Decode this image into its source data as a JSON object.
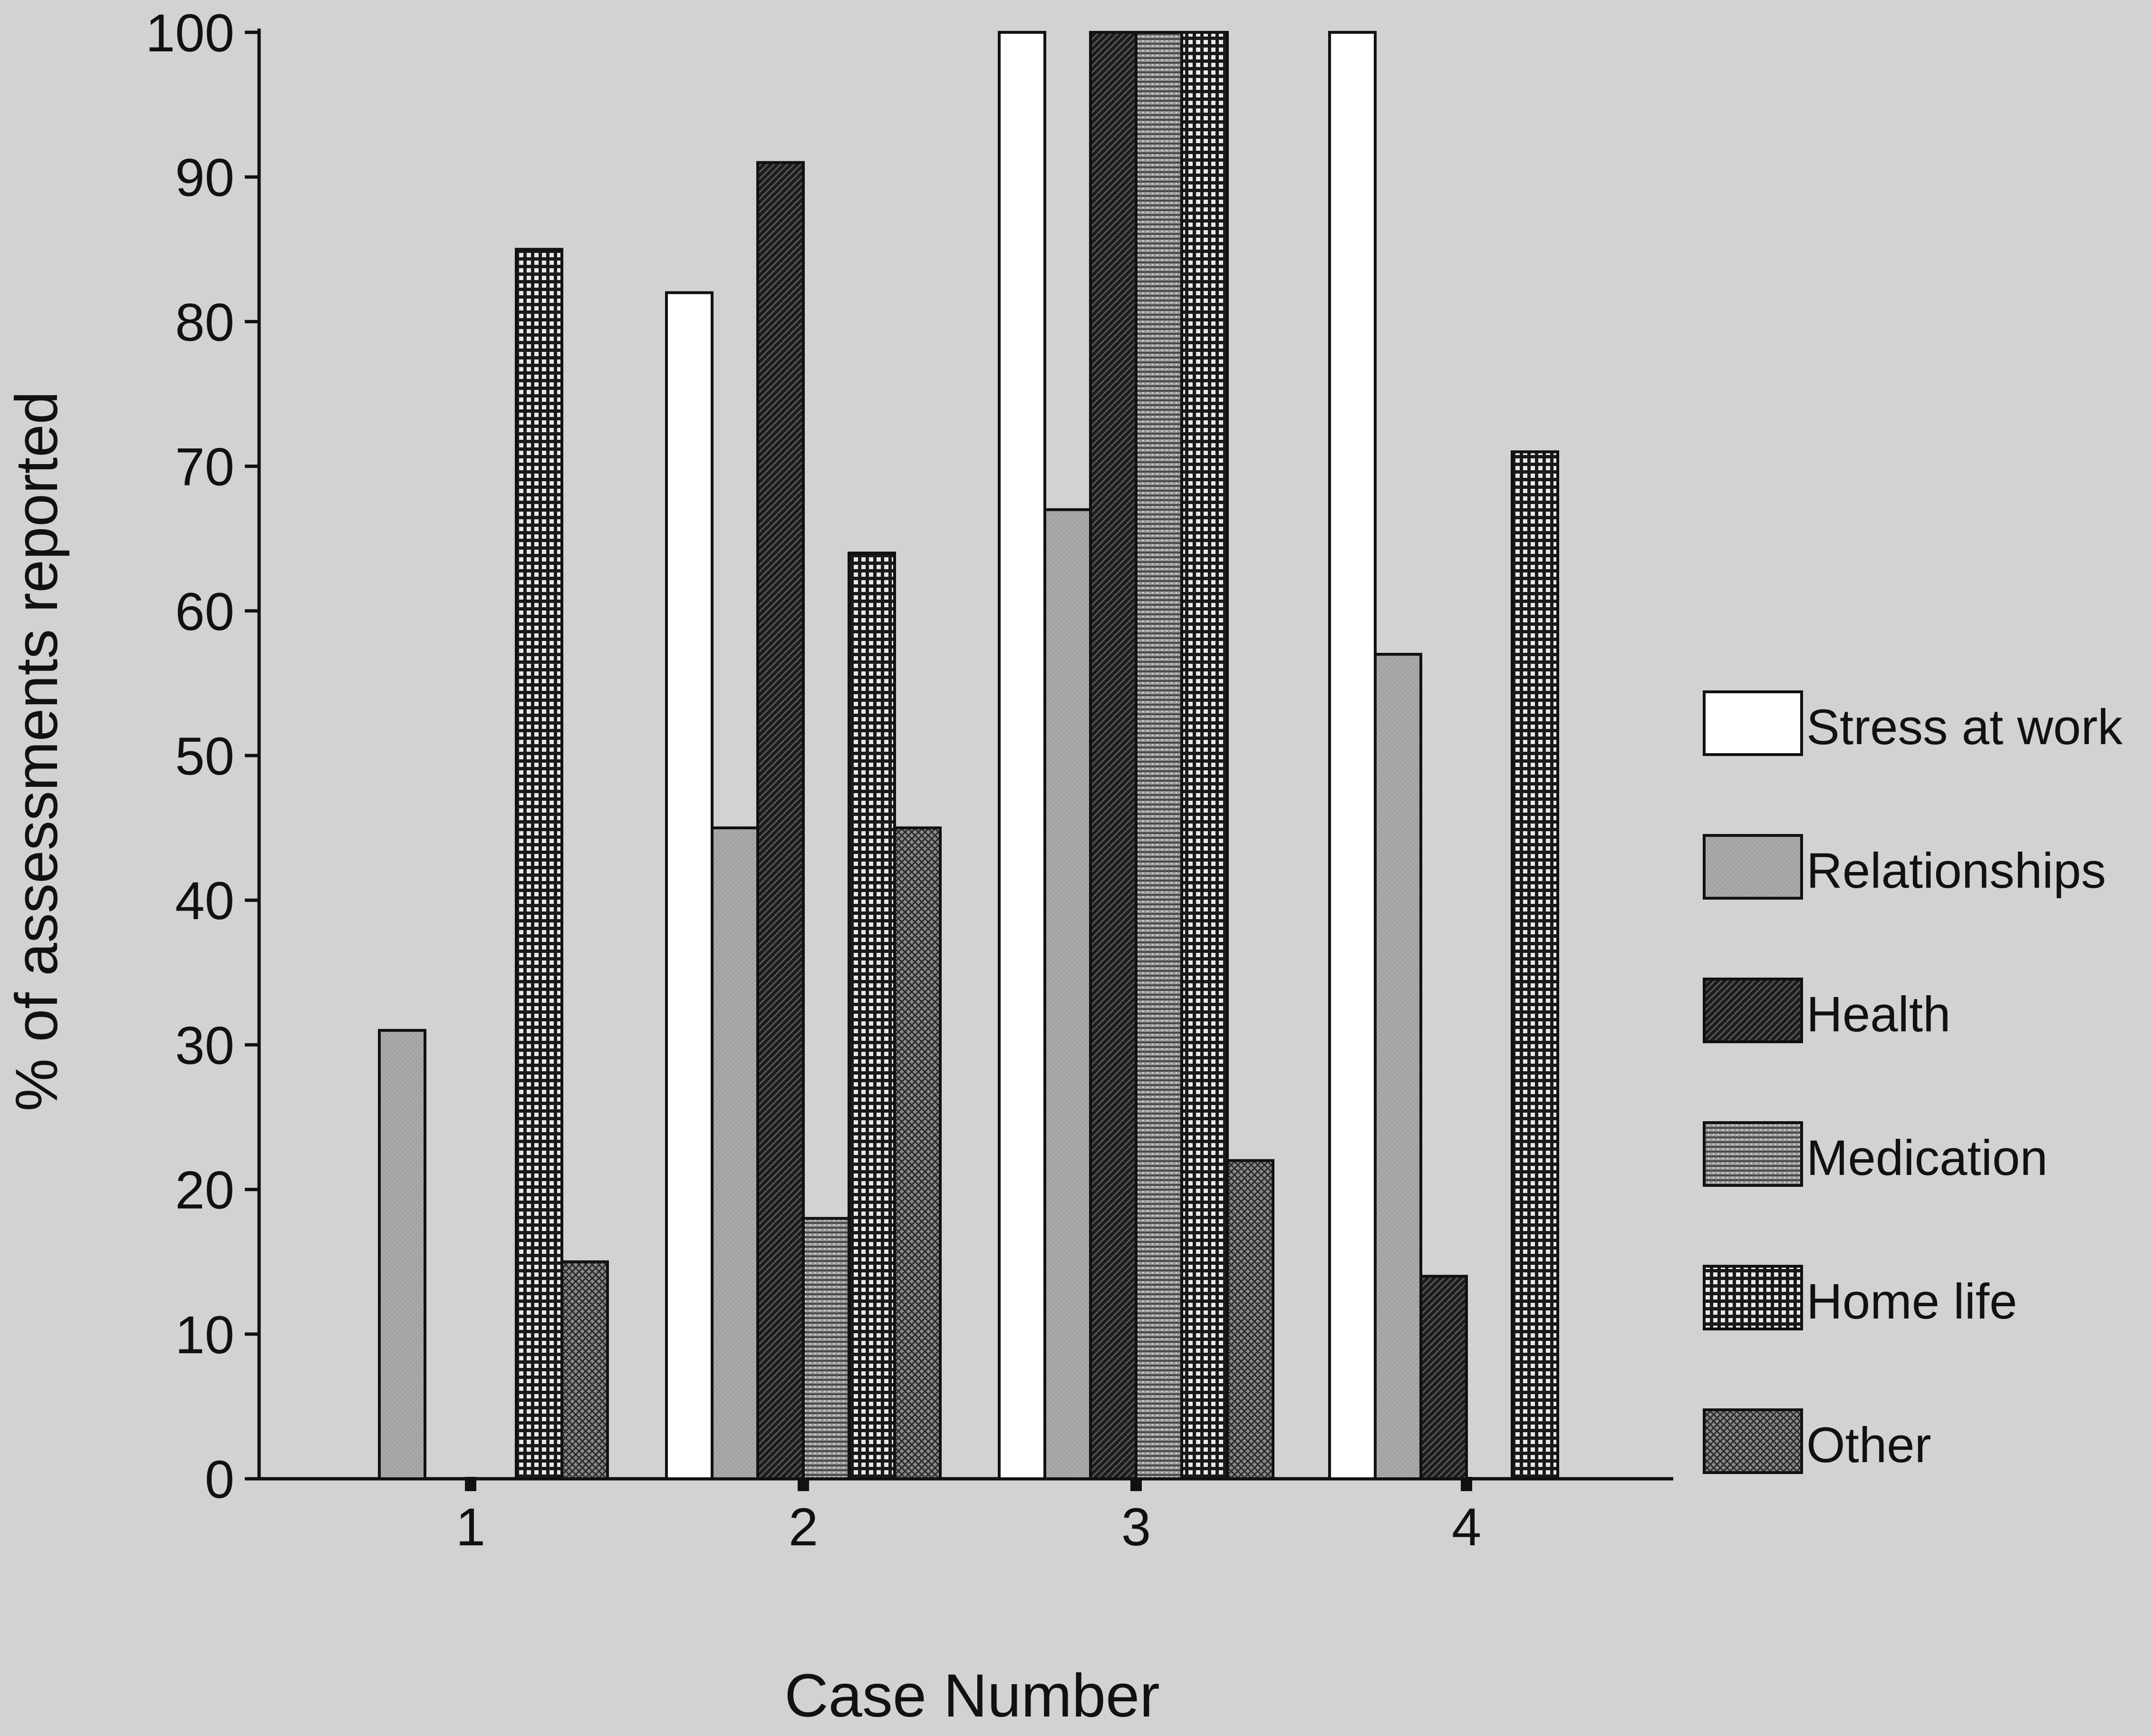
{
  "chart_data": {
    "type": "bar",
    "title": "",
    "xlabel": "Case Number",
    "ylabel": "% of assessments reported",
    "categories": [
      "1",
      "2",
      "3",
      "4"
    ],
    "ylim": [
      0,
      100
    ],
    "yticks": [
      "0",
      "10",
      "20",
      "30",
      "40",
      "50",
      "60",
      "70",
      "80",
      "90",
      "100"
    ],
    "grid": false,
    "legend_position": "right",
    "series": [
      {
        "name": "Stress at work",
        "pattern": "white",
        "values": [
          0,
          82,
          100,
          100
        ]
      },
      {
        "name": "Relationships",
        "pattern": "light-gray",
        "values": [
          31,
          45,
          67,
          57
        ]
      },
      {
        "name": "Health",
        "pattern": "dark-hatch",
        "values": [
          0,
          91,
          100,
          14
        ]
      },
      {
        "name": "Medication",
        "pattern": "horizontal-lines",
        "values": [
          0,
          18,
          100,
          0
        ]
      },
      {
        "name": "Home life",
        "pattern": "grid",
        "values": [
          85,
          64,
          100,
          71
        ]
      },
      {
        "name": "Other",
        "pattern": "crosshatch",
        "values": [
          15,
          45,
          22,
          0
        ]
      }
    ],
    "colors": {
      "background": "#d2d2d4",
      "ink": "#111111",
      "white_fill": "#ffffff",
      "light_gray_fill": "#a9a9ab",
      "dark_fill": "#1c1c1c",
      "medium_fill": "#8f8f91"
    }
  }
}
